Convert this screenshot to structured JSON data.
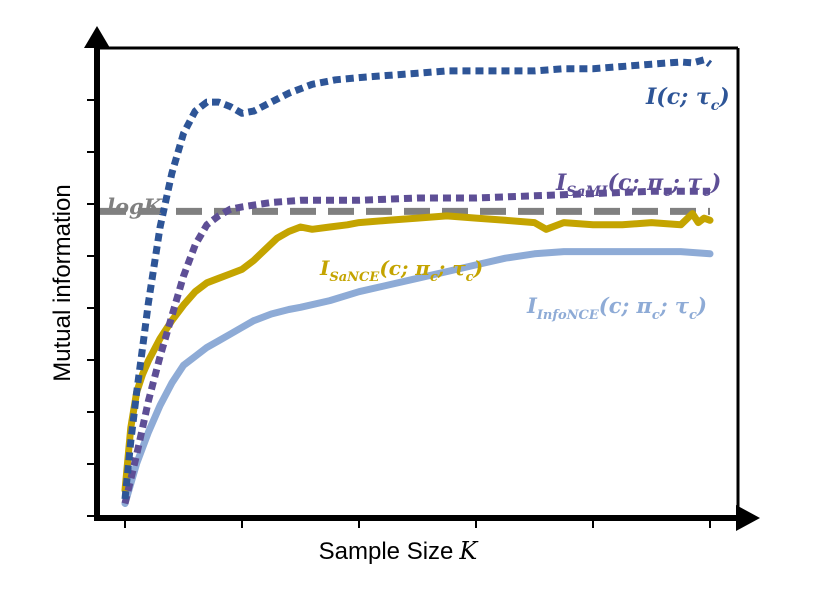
{
  "chart_data": {
    "type": "line",
    "title": "",
    "xlabel": "Sample Size K",
    "xlabel_text": "Sample Size",
    "xlabel_var": "K",
    "ylabel": "Mutual information",
    "xlim": [
      0,
      100
    ],
    "ylim": [
      0,
      100
    ],
    "x_ticks": [
      0,
      20,
      40,
      60,
      80,
      100
    ],
    "y_ticks": [
      0,
      12.5,
      25,
      37.5,
      50,
      62.5,
      75,
      87.5,
      100
    ],
    "tick_labels_shown": false,
    "grid": false,
    "reference_lines": [
      {
        "name": "logK",
        "label": "logK",
        "y": 66.5,
        "color": "#808080",
        "style": "dashed"
      }
    ],
    "series": [
      {
        "name": "I(c; τc)",
        "label": {
          "main": "I",
          "sub": "",
          "args": "(c; τ",
          "argsub": "c",
          "close": ")"
        },
        "color": "#2E5597",
        "style": "dotted",
        "x": [
          0,
          1,
          2,
          3,
          4,
          6,
          8,
          10,
          12,
          14,
          16,
          18,
          20,
          22,
          25,
          28,
          32,
          36,
          40,
          45,
          50,
          55,
          60,
          65,
          70,
          75,
          80,
          85,
          90,
          95,
          97,
          99,
          100
        ],
        "values": [
          2,
          15,
          26,
          36,
          46,
          63,
          75,
          84,
          89,
          91,
          91,
          90,
          88.5,
          89,
          91,
          93,
          95,
          96,
          96.5,
          97,
          97.5,
          98,
          98,
          98,
          98,
          98.5,
          98.5,
          99,
          99.5,
          100,
          99.8,
          100.5,
          99.5
        ]
      },
      {
        "name": "I_SaMI(c; πc; τc)",
        "label": {
          "main": "I",
          "sub": "SaMI",
          "args": "(c; π",
          "argsub": "c",
          "mid": "; τ",
          "midsub": "c",
          "close": ")"
        },
        "color": "#5E4F96",
        "style": "dotted",
        "x": [
          0,
          2,
          4,
          6,
          8,
          10,
          12,
          14,
          16,
          18,
          20,
          25,
          30,
          35,
          40,
          50,
          60,
          70,
          80,
          90,
          100
        ],
        "values": [
          1,
          12,
          24,
          34,
          43,
          52,
          59,
          63.5,
          65.5,
          67,
          67.5,
          68.5,
          69,
          69,
          69,
          69.5,
          69.5,
          70,
          70.5,
          71,
          71
        ]
      },
      {
        "name": "I_SaNCE(c; πc; τc)",
        "label": {
          "main": "I",
          "sub": "SaNCE",
          "args": "(c; π",
          "argsub": "c",
          "mid": "; τ",
          "midsub": "c",
          "close": ")"
        },
        "color": "#C4A400",
        "style": "solid",
        "x": [
          0,
          1,
          2,
          3,
          4,
          6,
          8,
          10,
          12,
          14,
          16,
          18,
          20,
          22,
          24,
          26,
          28,
          30,
          32,
          35,
          38,
          40,
          45,
          50,
          55,
          60,
          65,
          70,
          72,
          75,
          80,
          85,
          90,
          95,
          97,
          98,
          99,
          100
        ],
        "values": [
          4,
          18,
          26,
          30,
          33,
          38,
          42,
          45.5,
          48.5,
          50.5,
          51.5,
          52.5,
          53.5,
          55.5,
          58,
          60.5,
          62,
          63,
          62.5,
          63,
          63.5,
          64,
          64.5,
          65,
          65.5,
          65,
          64.5,
          64,
          62.5,
          64,
          63.5,
          63.5,
          64,
          63.5,
          66,
          64,
          65,
          64.5
        ]
      },
      {
        "name": "I_InfoNCE(c; πc; τc)",
        "label": {
          "main": "I",
          "sub": "InfoNCE",
          "args": "(c; π",
          "argsub": "c",
          "mid": "; τ",
          "midsub": "c",
          "close": ")"
        },
        "color": "#8EABD6",
        "style": "solid",
        "x": [
          0,
          2,
          4,
          6,
          8,
          10,
          12,
          14,
          16,
          18,
          20,
          22,
          25,
          28,
          30,
          35,
          40,
          45,
          50,
          55,
          60,
          65,
          70,
          75,
          80,
          85,
          90,
          95,
          100
        ],
        "values": [
          1,
          10,
          17,
          23,
          28,
          32,
          34,
          36,
          37.5,
          39,
          40.5,
          42,
          43.5,
          44.5,
          45,
          46.5,
          48.5,
          50,
          51.5,
          53,
          54.5,
          56,
          57,
          57.5,
          57.5,
          57.5,
          57.5,
          57.5,
          57
        ]
      }
    ]
  }
}
